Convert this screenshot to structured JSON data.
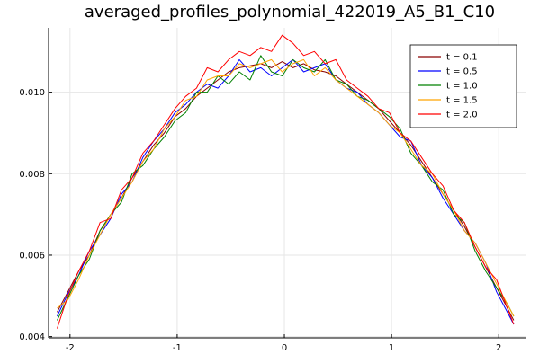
{
  "chart_data": {
    "type": "line",
    "title": "averaged_profiles_polynomial_422019_A5_B1_C10",
    "xlabel": "",
    "ylabel": "",
    "xlim": [
      -2.2,
      2.25
    ],
    "ylim": [
      0.00397,
      0.01158
    ],
    "x_ticks": [
      -2,
      -1,
      0,
      1,
      2
    ],
    "x_tick_labels": [
      "-2",
      "-1",
      "0",
      "1",
      "2"
    ],
    "y_ticks": [
      0.004,
      0.006,
      0.008,
      0.01
    ],
    "y_tick_labels": [
      "0.004",
      "0.006",
      "0.008",
      "0.010"
    ],
    "grid": true,
    "legend_position": "top-right",
    "x": [
      -2.12,
      -2.02,
      -1.92,
      -1.82,
      -1.72,
      -1.62,
      -1.52,
      -1.42,
      -1.32,
      -1.22,
      -1.12,
      -1.02,
      -0.92,
      -0.82,
      -0.72,
      -0.62,
      -0.52,
      -0.42,
      -0.32,
      -0.22,
      -0.12,
      -0.02,
      0.08,
      0.18,
      0.28,
      0.38,
      0.48,
      0.58,
      0.68,
      0.78,
      0.88,
      0.98,
      1.08,
      1.18,
      1.28,
      1.38,
      1.48,
      1.58,
      1.68,
      1.78,
      1.88,
      1.98,
      2.08,
      2.14
    ],
    "series": [
      {
        "name": "t = 0.1",
        "color": "#8b0000",
        "values": [
          0.0046,
          0.0051,
          0.0056,
          0.006,
          0.0066,
          0.007,
          0.0074,
          0.0079,
          0.0083,
          0.0087,
          0.009,
          0.0094,
          0.0096,
          0.0099,
          0.0101,
          0.0103,
          0.0105,
          0.0106,
          0.01065,
          0.0107,
          0.0106,
          0.01075,
          0.0106,
          0.0107,
          0.01055,
          0.0105,
          0.0104,
          0.0102,
          0.01,
          0.0098,
          0.0096,
          0.0093,
          0.009,
          0.0087,
          0.0083,
          0.0079,
          0.0075,
          0.0071,
          0.0067,
          0.0062,
          0.0057,
          0.0052,
          0.0047,
          0.0044
        ]
      },
      {
        "name": "t = 0.5",
        "color": "#0000ff",
        "values": [
          0.0045,
          0.00505,
          0.0055,
          0.0061,
          0.0065,
          0.0069,
          0.0075,
          0.0078,
          0.0084,
          0.0088,
          0.0091,
          0.0095,
          0.0097,
          0.01,
          0.0102,
          0.0101,
          0.0104,
          0.0108,
          0.0105,
          0.0106,
          0.0104,
          0.0106,
          0.0108,
          0.0105,
          0.0106,
          0.0107,
          0.0103,
          0.0101,
          0.01,
          0.0097,
          0.0095,
          0.0092,
          0.0089,
          0.0088,
          0.0082,
          0.0079,
          0.0074,
          0.007,
          0.0066,
          0.0063,
          0.0058,
          0.0051,
          0.0046,
          0.0043
        ]
      },
      {
        "name": "t = 1.0",
        "color": "#008000",
        "values": [
          0.0044,
          0.00495,
          0.0055,
          0.0059,
          0.0066,
          0.007,
          0.0073,
          0.008,
          0.0082,
          0.0086,
          0.0089,
          0.0093,
          0.0095,
          0.01,
          0.01,
          0.0104,
          0.0102,
          0.0105,
          0.0103,
          0.0109,
          0.0105,
          0.0104,
          0.0108,
          0.0106,
          0.0105,
          0.0108,
          0.0103,
          0.0102,
          0.0099,
          0.0098,
          0.0096,
          0.0094,
          0.0091,
          0.0085,
          0.0082,
          0.0078,
          0.0076,
          0.007,
          0.0068,
          0.0061,
          0.0056,
          0.0052,
          0.0048,
          0.0045
        ]
      },
      {
        "name": "t = 1.5",
        "color": "#ffa500",
        "values": [
          0.0047,
          0.0049,
          0.0054,
          0.006,
          0.0065,
          0.007,
          0.0074,
          0.0078,
          0.0083,
          0.0086,
          0.0091,
          0.0094,
          0.0098,
          0.0099,
          0.0103,
          0.0104,
          0.0104,
          0.0107,
          0.0106,
          0.0107,
          0.0108,
          0.0105,
          0.0107,
          0.0108,
          0.0104,
          0.0106,
          0.0103,
          0.0101,
          0.0099,
          0.0097,
          0.0095,
          0.0092,
          0.009,
          0.0086,
          0.0082,
          0.008,
          0.0075,
          0.0071,
          0.0066,
          0.0063,
          0.0058,
          0.0053,
          0.0048,
          0.0045
        ]
      },
      {
        "name": "t = 2.0",
        "color": "#ff0000",
        "values": [
          0.0042,
          0.005,
          0.0056,
          0.0061,
          0.0068,
          0.0069,
          0.0076,
          0.0079,
          0.0085,
          0.0088,
          0.0092,
          0.0096,
          0.0099,
          0.0101,
          0.0106,
          0.0105,
          0.0108,
          0.011,
          0.0109,
          0.0111,
          0.011,
          0.0114,
          0.0112,
          0.0109,
          0.011,
          0.0107,
          0.0108,
          0.0103,
          0.0101,
          0.0099,
          0.0096,
          0.0095,
          0.009,
          0.0088,
          0.0084,
          0.008,
          0.0077,
          0.0071,
          0.0068,
          0.0062,
          0.0057,
          0.0054,
          0.0047,
          0.0043
        ]
      }
    ]
  }
}
